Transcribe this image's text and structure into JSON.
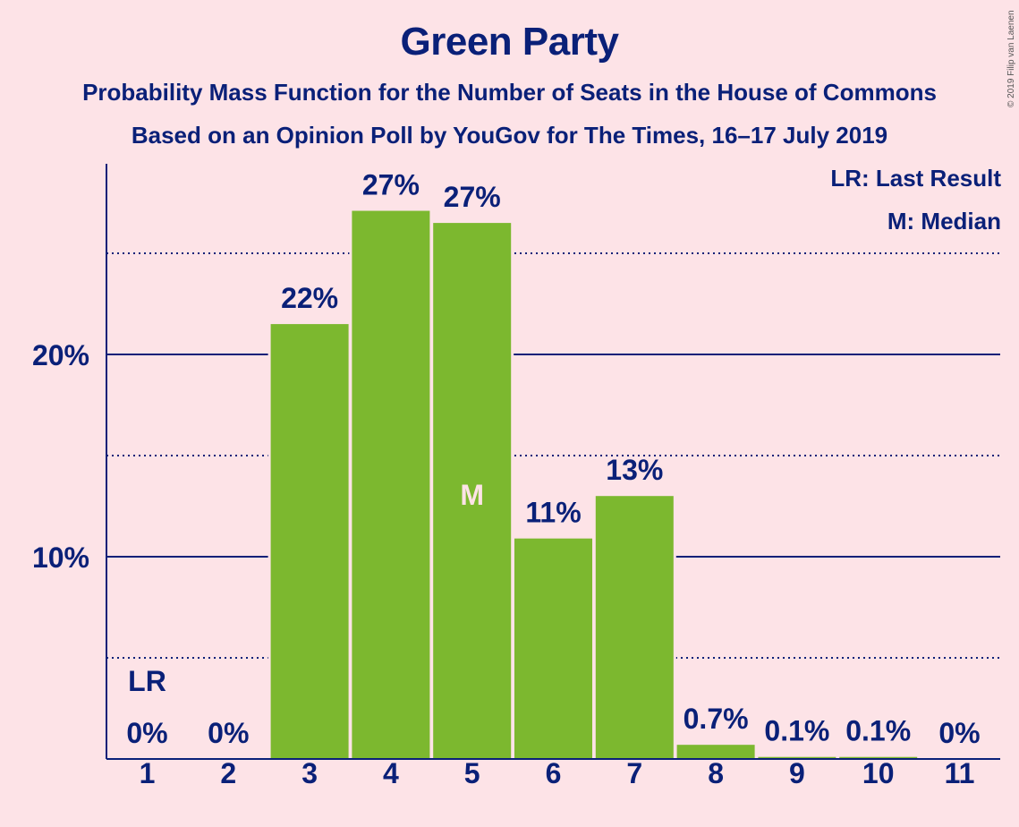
{
  "copyright": "© 2019 Filip van Laenen",
  "legend": {
    "last_result": "LR: Last Result",
    "median": "M: Median"
  },
  "colors": {
    "background": "#fde3e7",
    "bar": "#7cb82f",
    "text": "#0a2078",
    "median_label": "#fde3e7"
  },
  "chart_data": {
    "type": "bar",
    "title": "Green Party",
    "subtitle": [
      "Probability Mass Function for the Number of Seats in the House of Commons",
      "Based on an Opinion Poll by YouGov for The Times, 16–17 July 2019"
    ],
    "xlabel": "",
    "ylabel": "",
    "categories": [
      "1",
      "2",
      "3",
      "4",
      "5",
      "6",
      "7",
      "8",
      "9",
      "10",
      "11"
    ],
    "values": [
      0,
      0,
      21.5,
      27.1,
      26.5,
      10.9,
      13.0,
      0.7,
      0.1,
      0.1,
      0
    ],
    "data_labels": [
      "0%",
      "0%",
      "22%",
      "27%",
      "27%",
      "11%",
      "13%",
      "0.7%",
      "0.1%",
      "0.1%",
      "0%"
    ],
    "ylim": [
      0,
      29.5
    ],
    "yticks": [
      {
        "value": 10,
        "label": "10%"
      },
      {
        "value": 20,
        "label": "20%"
      }
    ],
    "minor_gridlines": [
      5,
      15,
      25
    ],
    "grid": true,
    "legend_placement": "top-right",
    "annotations": [
      {
        "category": "1",
        "text": "LR",
        "meaning": "Last Result"
      },
      {
        "category": "5",
        "text": "M",
        "meaning": "Median"
      }
    ]
  }
}
